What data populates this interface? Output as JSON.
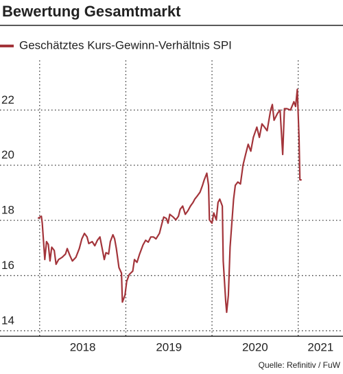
{
  "chart_data": {
    "type": "line",
    "title": "Bewertung Gesamtmarkt",
    "source": "Quelle: Refinitiv / FuW",
    "xlim": [
      2017.54,
      2021.52
    ],
    "ylim": [
      13.8,
      23.8
    ],
    "yticks": [
      14,
      16,
      18,
      20,
      22
    ],
    "xticks": [
      {
        "value": 2018,
        "label": "2018"
      },
      {
        "value": 2019,
        "label": "2019"
      },
      {
        "value": 2020,
        "label": "2020"
      },
      {
        "value": 2021,
        "label": "2021"
      }
    ],
    "grid": true,
    "series": [
      {
        "name": "Geschätztes Kurs-Gewinn-Verhältnis SPI",
        "color": "#a3343a",
        "x": [
          2017.98,
          2018.02,
          2018.03,
          2018.06,
          2018.08,
          2018.1,
          2018.12,
          2018.14,
          2018.17,
          2018.19,
          2018.22,
          2018.26,
          2018.3,
          2018.32,
          2018.35,
          2018.38,
          2018.42,
          2018.46,
          2018.49,
          2018.52,
          2018.55,
          2018.57,
          2018.61,
          2018.64,
          2018.67,
          2018.7,
          2018.73,
          2018.75,
          2018.77,
          2018.8,
          2018.82,
          2018.85,
          2018.87,
          2018.89,
          2018.92,
          2018.95,
          2018.96,
          2018.99,
          2019.01,
          2019.04,
          2019.08,
          2019.1,
          2019.13,
          2019.16,
          2019.2,
          2019.23,
          2019.26,
          2019.29,
          2019.32,
          2019.35,
          2019.39,
          2019.42,
          2019.44,
          2019.47,
          2019.49,
          2019.51,
          2019.55,
          2019.58,
          2019.61,
          2019.63,
          2019.66,
          2019.69,
          2019.72,
          2019.75,
          2019.78,
          2019.8,
          2019.83,
          2019.86,
          2019.89,
          2019.91,
          2019.94,
          2019.96,
          2019.97,
          2020.0,
          2020.02,
          2020.05,
          2020.07,
          2020.09,
          2020.12,
          2020.13,
          2020.16,
          2020.17,
          2020.19,
          2020.21,
          2020.25,
          2020.27,
          2020.3,
          2020.33,
          2020.36,
          2020.39,
          2020.42,
          2020.45,
          2020.48,
          2020.52,
          2020.55,
          2020.58,
          2020.61,
          2020.64,
          2020.68,
          2020.7,
          2020.72,
          2020.76,
          2020.79,
          2020.82,
          2020.84,
          2020.87,
          2020.91,
          2020.95,
          2020.97,
          2020.99,
          2021.01,
          2021.02,
          2021.04
        ],
        "values": [
          18.07,
          18.15,
          17.9,
          16.58,
          17.23,
          17.13,
          16.53,
          17.03,
          16.91,
          16.41,
          16.58,
          16.66,
          16.78,
          16.98,
          16.73,
          16.53,
          16.66,
          16.98,
          17.33,
          17.53,
          17.4,
          17.16,
          17.23,
          17.08,
          17.28,
          17.4,
          16.91,
          16.58,
          16.83,
          16.78,
          17.23,
          17.48,
          17.33,
          16.98,
          16.29,
          16.09,
          15.04,
          15.29,
          15.79,
          16.04,
          16.16,
          16.58,
          16.48,
          16.78,
          17.11,
          17.28,
          17.21,
          17.4,
          17.4,
          17.33,
          17.53,
          17.9,
          18.12,
          18.07,
          17.9,
          18.22,
          18.12,
          18.02,
          18.15,
          18.4,
          18.52,
          18.22,
          18.35,
          18.52,
          18.65,
          18.77,
          18.89,
          19.02,
          19.27,
          19.47,
          19.71,
          19.27,
          18.02,
          17.9,
          18.27,
          18.02,
          18.65,
          18.77,
          18.52,
          16.53,
          15.04,
          14.67,
          15.29,
          17.03,
          18.77,
          19.27,
          19.39,
          19.32,
          20.01,
          20.39,
          20.76,
          20.51,
          21.01,
          21.38,
          21.01,
          21.5,
          21.38,
          21.25,
          22.0,
          22.2,
          21.63,
          21.88,
          22.0,
          20.39,
          22.05,
          22.05,
          22.0,
          22.3,
          22.13,
          22.75,
          21.01,
          19.47,
          19.47
        ]
      }
    ]
  }
}
